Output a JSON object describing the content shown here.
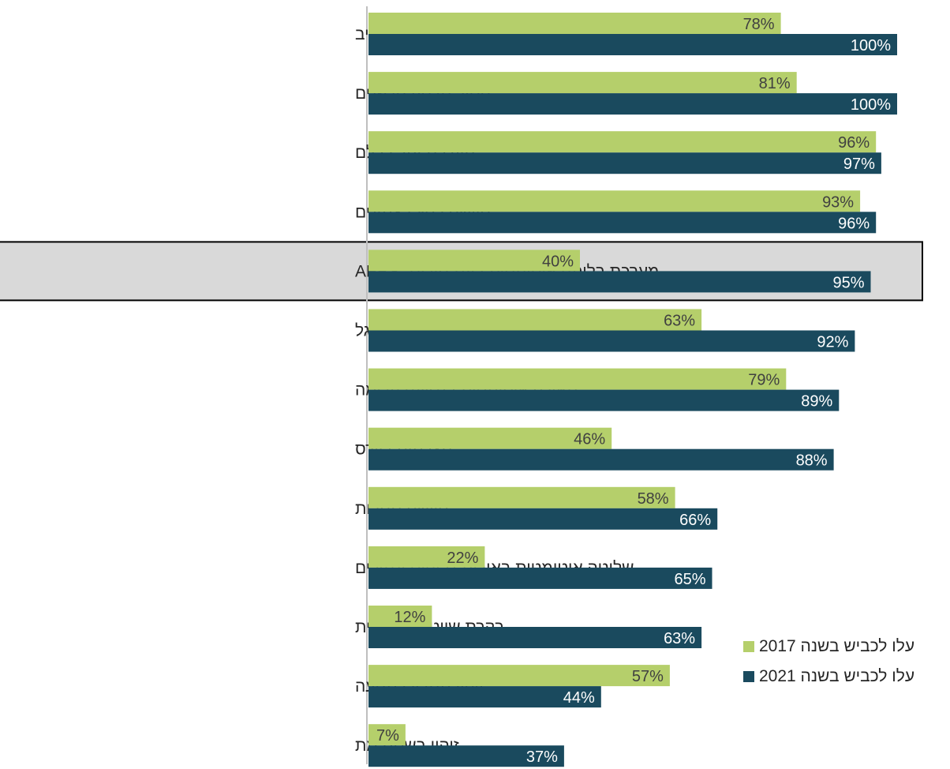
{
  "chart_data": {
    "type": "bar",
    "orientation": "horizontal",
    "xlim": [
      0,
      100
    ],
    "grid": false,
    "legend_position": "bottom-right",
    "categories": [
      "בקרת סטייה מנתיב",
      "ניטור מרחק מלפנים",
      "מערכת עזר לבלם",
      "חיישני לחץ בצמיגים",
      "מערכת בלימה אוטומטית בעת חירום- AEBS",
      "זיהוי הולכי רגל",
      "תאורה אוטומטית בנסיעה קדימה",
      "מצלמות רוורס",
      "חיישני חגורות",
      "שליטה אוטומטית באורות גבוהים ונמוכים",
      "בקרת שיוט אדפטיבית",
      "זיהוי תמרורי תנועה",
      "זיהוי בשטח מת"
    ],
    "highlighted_category": "מערכת בלימה אוטומטית בעת חירום- AEBS",
    "series": [
      {
        "name": "עלו לכביש בשנה 2017",
        "color": "#B5CF6B",
        "label_color": "#404040",
        "values": [
          78,
          81,
          96,
          93,
          40,
          63,
          79,
          46,
          58,
          22,
          12,
          57,
          7
        ],
        "labels": [
          "78%",
          "81%",
          "96%",
          "93%",
          "40%",
          "63%",
          "79%",
          "46%",
          "58%",
          "22%",
          "12%",
          "57%",
          "7%"
        ]
      },
      {
        "name": "עלו לכביש בשנה 2021",
        "color": "#1A4A5E",
        "label_color": "#FFFFFF",
        "values": [
          100,
          100,
          97,
          96,
          95,
          92,
          89,
          88,
          66,
          65,
          63,
          44,
          37
        ],
        "labels": [
          "100%",
          "100%",
          "97%",
          "96%",
          "95%",
          "92%",
          "89%",
          "88%",
          "66%",
          "65%",
          "63%",
          "44%",
          "37%"
        ]
      }
    ]
  },
  "legend": {
    "items": [
      {
        "label": "עלו לכביש בשנה 2017",
        "color": "#B5CF6B"
      },
      {
        "label": "עלו לכביש בשנה 2021",
        "color": "#1A4A5E"
      }
    ]
  }
}
